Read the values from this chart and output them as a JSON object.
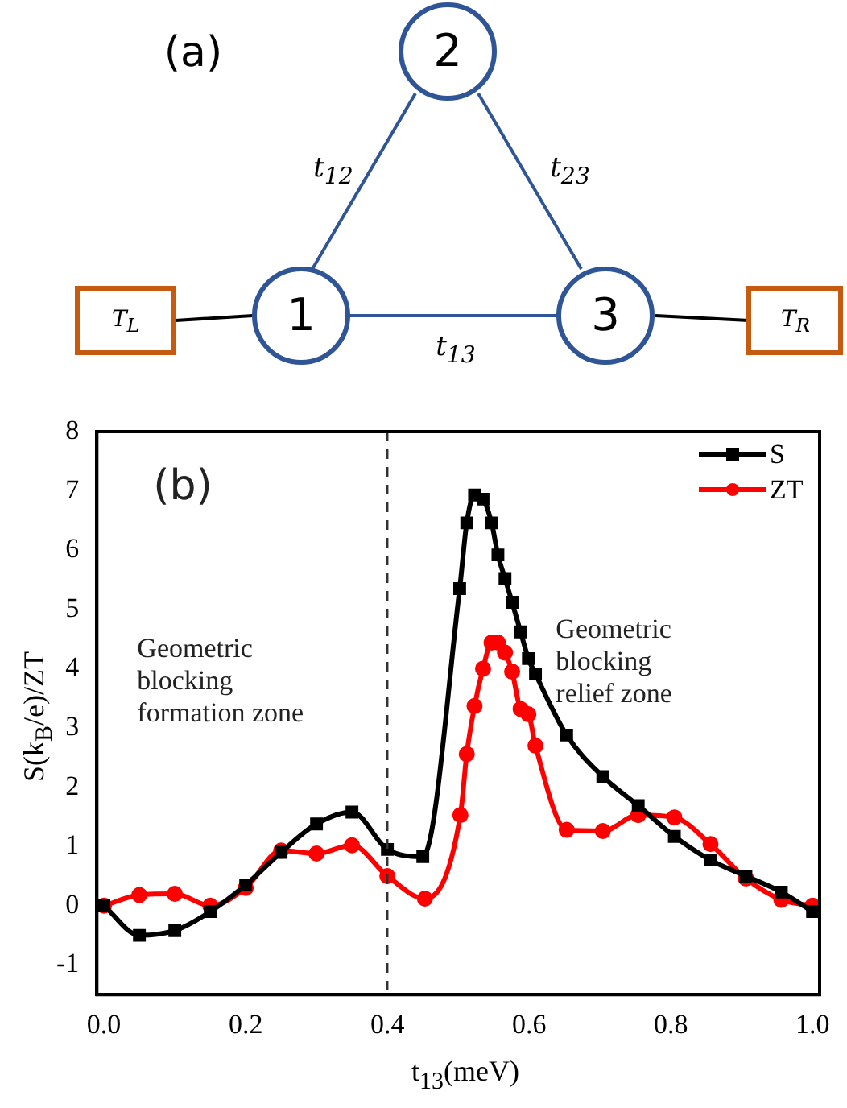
{
  "chart_data": {
    "type": "line",
    "xlabel": "t$_{13}$(meV)",
    "ylabel": "S(k$_{B}$/e)/ZT",
    "xlim": [
      -0.01,
      1.01
    ],
    "xticks": [
      {
        "value": 0,
        "label": "0.0"
      },
      {
        "value": 0.2,
        "label": "0.2"
      },
      {
        "value": 0.4,
        "label": "0.4"
      },
      {
        "value": 0.6,
        "label": "0.6"
      },
      {
        "value": 0.8,
        "label": "0.8"
      },
      {
        "value": 1,
        "label": "1.0"
      }
    ],
    "ylim": [
      -1.5,
      8
    ],
    "yticks": [
      -1,
      0,
      1,
      2,
      3,
      4,
      5,
      6,
      7,
      8
    ],
    "series": [
      {
        "name": "S",
        "color": "#000000",
        "marker": "square",
        "x": [
          0,
          0.05,
          0.1,
          0.15,
          0.2,
          0.25,
          0.3,
          0.35,
          0.4,
          0.45,
          0.502,
          0.512,
          0.523,
          0.535,
          0.547,
          0.556,
          0.566,
          0.576,
          0.588,
          0.599,
          0.609,
          0.653,
          0.704,
          0.754,
          0.805,
          0.856,
          0.906,
          0.956,
          1.0
        ],
        "values": [
          0,
          -0.5,
          -0.42,
          -0.1,
          0.35,
          0.9,
          1.38,
          1.58,
          0.95,
          0.83,
          5.35,
          6.46,
          6.93,
          6.86,
          6.46,
          5.92,
          5.52,
          5.12,
          4.62,
          4.17,
          3.91,
          2.88,
          2.18,
          1.69,
          1.17,
          0.77,
          0.5,
          0.23,
          -0.1
        ]
      },
      {
        "name": "ZT",
        "color": "#ff0000",
        "marker": "circle",
        "x": [
          0,
          0.05,
          0.1,
          0.15,
          0.2,
          0.25,
          0.3,
          0.35,
          0.4,
          0.453,
          0.503,
          0.512,
          0.523,
          0.535,
          0.547,
          0.556,
          0.566,
          0.576,
          0.588,
          0.599,
          0.609,
          0.653,
          0.704,
          0.754,
          0.805,
          0.856,
          0.906,
          0.956,
          1.0
        ],
        "values": [
          0,
          0.18,
          0.2,
          0,
          0.3,
          0.93,
          0.88,
          1.02,
          0.5,
          0.12,
          1.53,
          2.56,
          3.37,
          4.0,
          4.44,
          4.44,
          4.27,
          3.95,
          3.32,
          3.23,
          2.7,
          1.28,
          1.26,
          1.53,
          1.49,
          1.04,
          0.46,
          0.1,
          0
        ]
      }
    ],
    "ref_lines": [
      {
        "axis": "x",
        "value": 0.4,
        "color": "#333333",
        "line_style": "dashed"
      }
    ],
    "legend": "top right",
    "grid": false,
    "annotations": [
      "(a)",
      "1",
      "2",
      "3",
      "t$_{12}$",
      "t$_{23}$",
      "t$_{13}$",
      "T$_{L}$",
      "T$_{R}$",
      "(b)",
      "Geometric blocking formation zone",
      "Geometric blocking relief zone"
    ]
  }
}
